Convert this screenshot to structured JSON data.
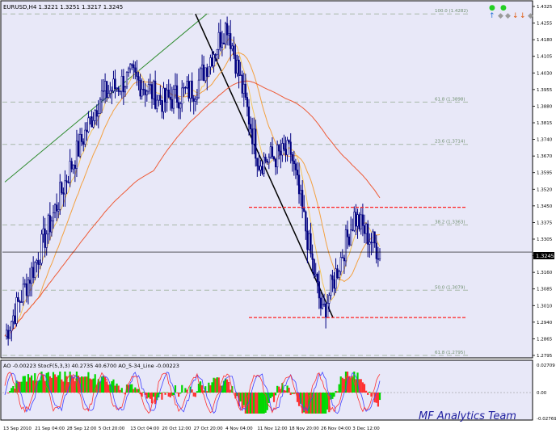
{
  "window": {
    "symbol_header": "EURUSD,H4  1.3221 1.3251 1.3217 1.3245",
    "watermark": "MF Analytics Team"
  },
  "colors": {
    "background": "#ffffff",
    "plot_background": "#e8e8f8",
    "frame": "#000000",
    "candles": "#000080",
    "fib_levels": "#a8b8a8",
    "fib_text": "#6f8f6f",
    "ma_fast": "#f3c45a",
    "ma_mid": "#f3a040",
    "ma_slow": "#ee5a36",
    "trend_line_up": "#2e8b2e",
    "trend_line_down": "#000000",
    "support_resistance": "#ff2020",
    "ao_up": "#00d800",
    "ao_down": "#ff3030",
    "osc_blue": "#4040ff",
    "osc_red": "#ff3030",
    "price_label_bg": "#000000",
    "price_label_text": "#ffffff",
    "watermark": "#2020a0"
  },
  "toolbar_icons": [
    {
      "name": "green-dot-icon",
      "glyph": "●",
      "color": "#23d023"
    },
    {
      "name": "green-dot-icon",
      "glyph": "●",
      "color": "#23d023"
    },
    {
      "name": "arrow-up-icon",
      "glyph": "↑",
      "color": "#1e6bd6"
    },
    {
      "name": "diamond-icon",
      "glyph": "◆",
      "color": "#9a9a9a"
    },
    {
      "name": "diamond-icon",
      "glyph": "◆",
      "color": "#9a9a9a"
    },
    {
      "name": "arrow-down-icon",
      "glyph": "↓",
      "color": "#e05a10"
    },
    {
      "name": "arrow-down-icon",
      "glyph": "↓",
      "color": "#e05a10"
    },
    {
      "name": "diamond-icon",
      "glyph": "◆",
      "color": "#9a9a9a"
    }
  ],
  "fib_levels": [
    {
      "label": "100.0  (1.4282)",
      "price": 1.4282
    },
    {
      "label": "61.8  (1.3898)",
      "price": 1.3898
    },
    {
      "label": "23.6  (1.3714)",
      "price": 1.3714
    },
    {
      "label": "38.2  (1.3363)",
      "price": 1.3363
    },
    {
      "label": "50.0  (1.3079)",
      "price": 1.3079
    },
    {
      "label": "61.8  (1.2795)",
      "price": 1.2795
    }
  ],
  "price_axis": {
    "ticks": [
      "1.4325",
      "1.4255",
      "1.4180",
      "1.4105",
      "1.4030",
      "1.3955",
      "1.3880",
      "1.3815",
      "1.3740",
      "1.3670",
      "1.3595",
      "1.3520",
      "1.3450",
      "1.3375",
      "1.3305",
      "1.3230",
      "1.3160",
      "1.3085",
      "1.3010",
      "1.2940",
      "1.2865",
      "1.2795"
    ],
    "current_price_label": "1.3245"
  },
  "indicator": {
    "header": "AO -0.00223  StocF(5,3,3) 40.2735 40.6700  AO_5-34_Line -0.00223",
    "axis_ticks": [
      "0.02709",
      "0.00",
      "-0.02769"
    ]
  },
  "time_axis": {
    "labels": [
      "13 Sep 2010",
      "21 Sep 04:00",
      "28 Sep 12:00",
      "5 Oct 20:00",
      "13 Oct 04:00",
      "20 Oct 12:00",
      "27 Oct 20:00",
      "4 Nov 04:00",
      "11 Nov 12:00",
      "18 Nov 20:00",
      "26 Nov 04:00",
      "3 Dec 12:00"
    ]
  },
  "chart_data": {
    "type": "candlestick",
    "symbol": "EURUSD",
    "timeframe": "H4",
    "ohlc_header": {
      "open": 1.3221,
      "high": 1.3251,
      "low": 1.3217,
      "close": 1.3245
    },
    "ylim": [
      1.2795,
      1.4325
    ],
    "close_path": [
      {
        "t": "13 Sep 2010",
        "price": 1.288
      },
      {
        "t": "21 Sep 04:00",
        "price": 1.321
      },
      {
        "t": "28 Sep 12:00",
        "price": 1.359
      },
      {
        "t": "5 Oct 20:00",
        "price": 1.392
      },
      {
        "t": "13 Oct 04:00",
        "price": 1.401
      },
      {
        "t": "20 Oct 12:00",
        "price": 1.39
      },
      {
        "t": "27 Oct 20:00",
        "price": 1.396
      },
      {
        "t": "4 Nov 04:00",
        "price": 1.424
      },
      {
        "t": "11 Nov 12:00",
        "price": 1.364
      },
      {
        "t": "18 Nov 20:00",
        "price": 1.368
      },
      {
        "t": "26 Nov 04:00",
        "price": 1.297
      },
      {
        "t": "3 Dec 12:00",
        "price": 1.34
      },
      {
        "t": "last",
        "price": 1.3245
      }
    ],
    "moving_averages": [
      {
        "name": "fast",
        "color": "#f3c45a"
      },
      {
        "name": "mid",
        "color": "#f3a040"
      },
      {
        "name": "slow",
        "color": "#ee5a36"
      }
    ],
    "horizontal_levels": [
      {
        "name": "resistance",
        "price": 1.344
      },
      {
        "name": "support",
        "price": 1.296
      }
    ],
    "trend_lines": [
      {
        "name": "uptrend",
        "from": {
          "t": "13 Sep 2010",
          "price": 1.355
        },
        "to": {
          "t": "27 Oct 20:00",
          "price": 1.4282
        }
      },
      {
        "name": "downtrend",
        "from": {
          "t": "27 Oct 20:00",
          "price": 1.4282
        },
        "to": {
          "t": "26 Nov 04:00",
          "price": 1.296
        }
      }
    ],
    "oscillator": {
      "ao_value": -0.00223,
      "stoch_main": 40.2735,
      "stoch_signal": 40.67,
      "ylim": [
        -0.02769,
        0.02709
      ]
    }
  }
}
